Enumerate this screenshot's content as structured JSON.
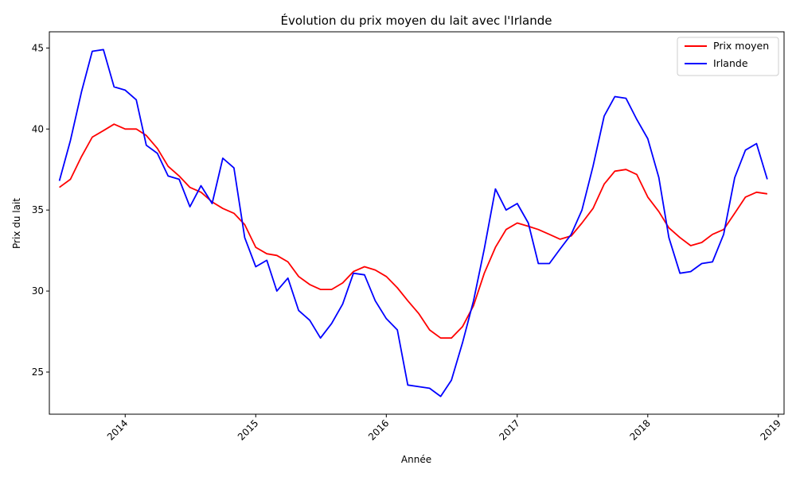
{
  "chart_data": {
    "type": "line",
    "title": "Évolution du prix moyen du lait avec l'Irlande",
    "xlabel": "Année",
    "ylabel": "Prix du lait",
    "x_ticks": [
      "2014",
      "2015",
      "2016",
      "2017",
      "2018",
      "2019"
    ],
    "y_ticks": [
      25,
      30,
      35,
      40,
      45
    ],
    "ylim": [
      22.4,
      46.0
    ],
    "xlim": [
      "2013-06-03",
      "2019-01-17"
    ],
    "grid": false,
    "legend_position": "top-right",
    "x": [
      "2013-07-01",
      "2013-08-01",
      "2013-09-01",
      "2013-10-01",
      "2013-11-01",
      "2013-12-01",
      "2014-01-01",
      "2014-02-01",
      "2014-03-01",
      "2014-04-01",
      "2014-05-01",
      "2014-06-01",
      "2014-07-01",
      "2014-08-01",
      "2014-09-01",
      "2014-10-01",
      "2014-11-01",
      "2014-12-01",
      "2015-01-01",
      "2015-02-01",
      "2015-03-01",
      "2015-04-01",
      "2015-05-01",
      "2015-06-01",
      "2015-07-01",
      "2015-08-01",
      "2015-09-01",
      "2015-10-01",
      "2015-11-01",
      "2015-12-01",
      "2016-01-01",
      "2016-02-01",
      "2016-03-01",
      "2016-04-01",
      "2016-05-01",
      "2016-06-01",
      "2016-07-01",
      "2016-08-01",
      "2016-09-01",
      "2016-10-01",
      "2016-11-01",
      "2016-12-01",
      "2017-01-01",
      "2017-02-01",
      "2017-03-01",
      "2017-04-01",
      "2017-05-01",
      "2017-06-01",
      "2017-07-01",
      "2017-08-01",
      "2017-09-01",
      "2017-10-01",
      "2017-11-01",
      "2017-12-01",
      "2018-01-01",
      "2018-02-01",
      "2018-03-01",
      "2018-04-01",
      "2018-05-01",
      "2018-06-01",
      "2018-07-01",
      "2018-08-01",
      "2018-09-01",
      "2018-10-01",
      "2018-11-01",
      "2018-12-01"
    ],
    "series": [
      {
        "name": "Prix moyen",
        "color": "#ff0000",
        "values": [
          36.4,
          36.9,
          38.3,
          39.5,
          39.9,
          40.3,
          40.0,
          40.0,
          39.6,
          38.8,
          37.7,
          37.1,
          36.4,
          36.1,
          35.5,
          35.1,
          34.8,
          34.1,
          32.7,
          32.3,
          32.2,
          31.8,
          30.9,
          30.4,
          30.1,
          30.1,
          30.5,
          31.2,
          31.5,
          31.3,
          30.9,
          30.2,
          29.4,
          28.6,
          27.6,
          27.1,
          27.1,
          27.8,
          29.1,
          31.1,
          32.7,
          33.8,
          34.2,
          34.0,
          33.8,
          33.5,
          33.2,
          33.4,
          34.2,
          35.1,
          36.6,
          37.4,
          37.5,
          37.2,
          35.8,
          34.9,
          33.9,
          33.3,
          32.8,
          33.0,
          33.5,
          33.8,
          34.8,
          35.8,
          36.1,
          36.0
        ]
      },
      {
        "name": "Irlande",
        "color": "#0000ff",
        "values": [
          36.8,
          39.3,
          42.3,
          44.8,
          44.9,
          42.6,
          42.4,
          41.8,
          39.0,
          38.5,
          37.1,
          36.9,
          35.2,
          36.5,
          35.4,
          38.2,
          37.6,
          33.3,
          31.5,
          31.9,
          30.0,
          30.8,
          28.8,
          28.2,
          27.1,
          28.0,
          29.2,
          31.1,
          31.0,
          29.4,
          28.3,
          27.6,
          24.2,
          24.1,
          24.0,
          23.5,
          24.5,
          26.8,
          29.4,
          32.6,
          36.3,
          35.0,
          35.4,
          34.2,
          31.7,
          31.7,
          32.6,
          33.5,
          35.0,
          37.7,
          40.8,
          42.0,
          41.9,
          40.6,
          39.4,
          37.0,
          33.3,
          31.1,
          31.2,
          31.7,
          31.8,
          33.5,
          37.0,
          38.7,
          39.1,
          36.9
        ]
      }
    ]
  }
}
